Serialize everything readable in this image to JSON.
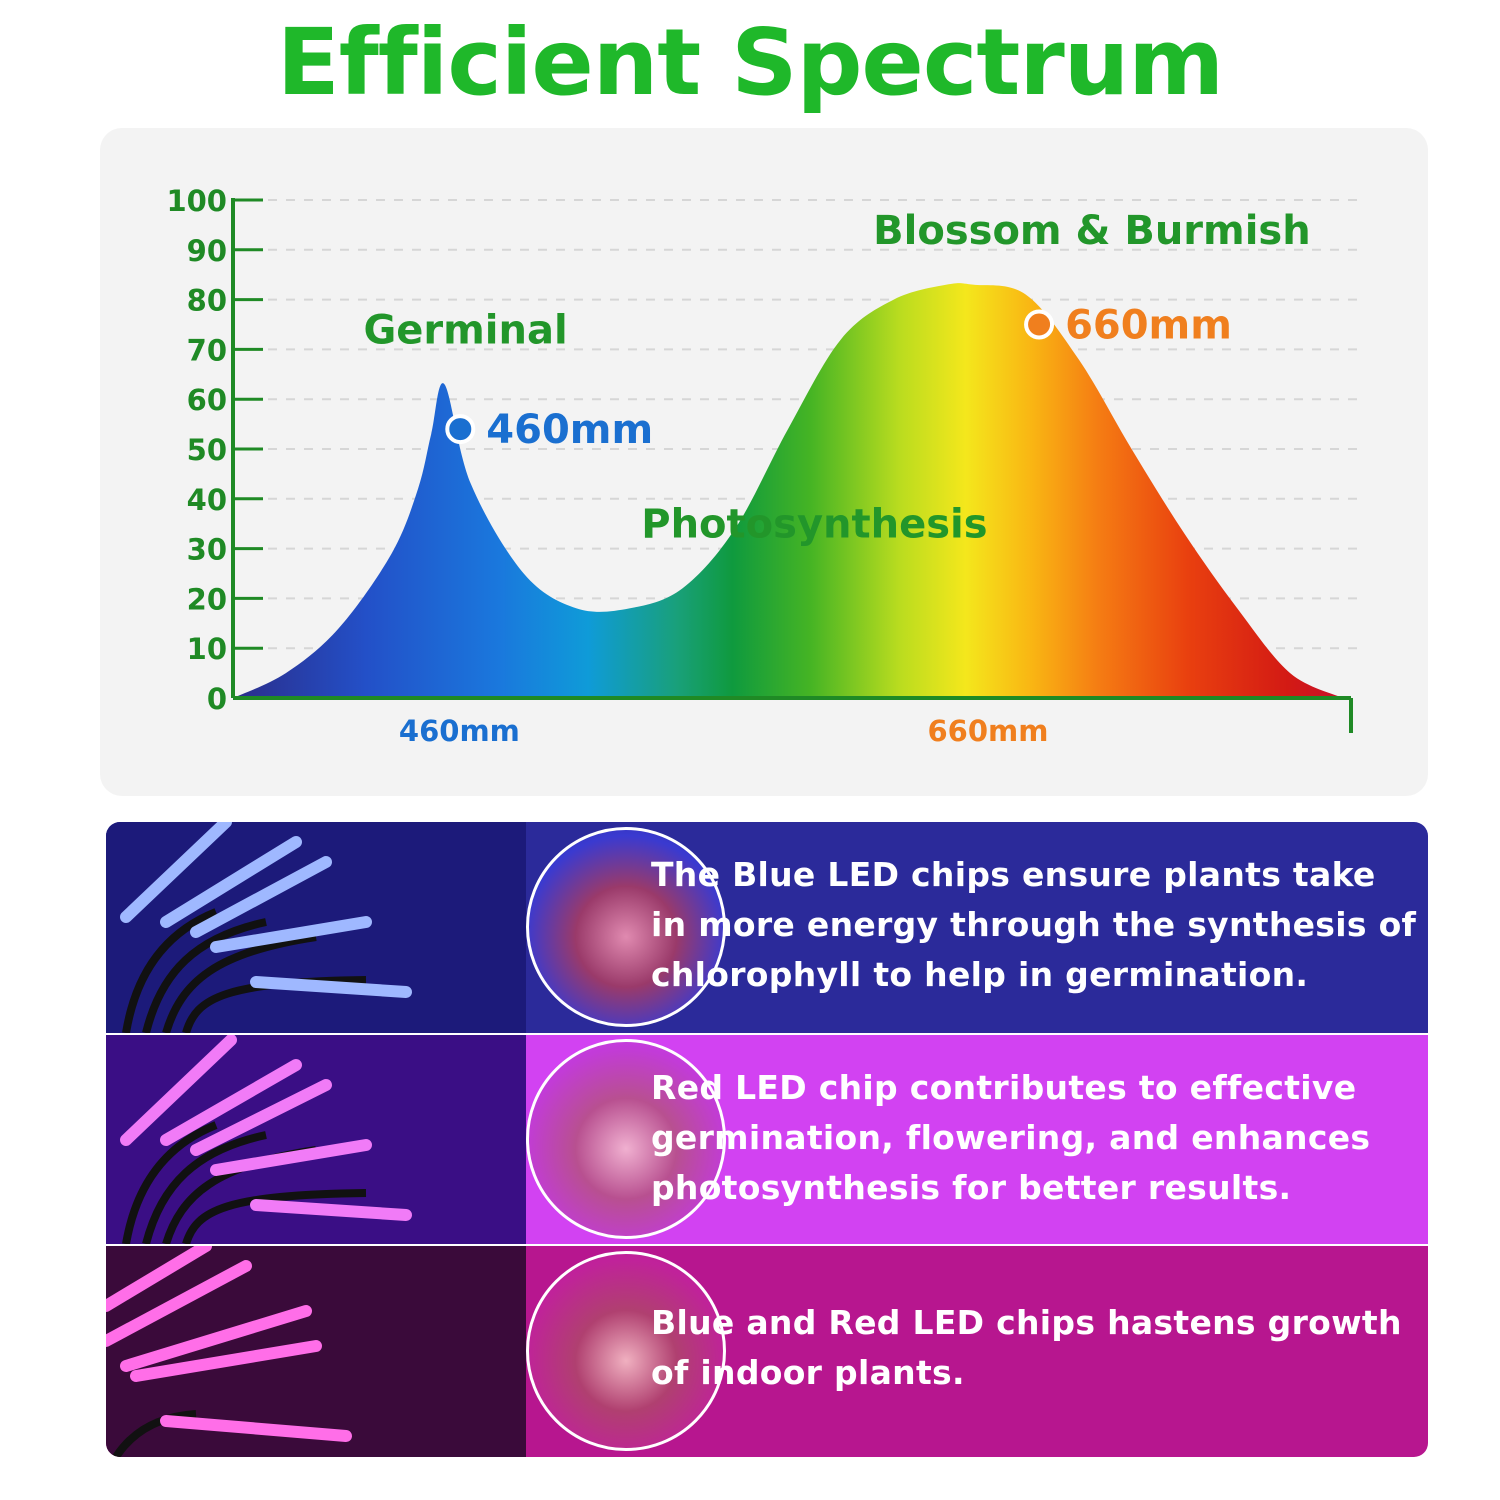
{
  "title": "Efficient Spectrum",
  "colors": {
    "title_green": "#1fb82a",
    "axis_green": "#1f8a25",
    "blue_marker": "#1a6fd0",
    "orange_marker": "#f07f1e",
    "panel_bg": "#f3f3f3"
  },
  "chart_data": {
    "type": "area",
    "title": "",
    "xlabel": "",
    "ylabel": "",
    "ylim": [
      0,
      100
    ],
    "yticks": [
      0,
      10,
      20,
      30,
      40,
      50,
      60,
      70,
      80,
      90,
      100
    ],
    "xlim": [
      380,
      800
    ],
    "grid": true,
    "x_category_labels": [
      {
        "x": 460,
        "label": "460mm",
        "color": "#1a6fd0"
      },
      {
        "x": 660,
        "label": "660mm",
        "color": "#f07f1e"
      }
    ],
    "series": [
      {
        "x": [
          380,
          400,
          420,
          440,
          450,
          455,
          460,
          470,
          490,
          510,
          530,
          550,
          570,
          590,
          610,
          630,
          650,
          660,
          680,
          700,
          720,
          740,
          760,
          780,
          800
        ],
        "y": [
          0,
          5,
          14,
          29,
          42,
          53,
          63,
          43,
          25,
          18,
          18,
          22,
          34,
          54,
          72,
          80,
          83,
          83,
          81,
          68,
          50,
          33,
          18,
          5,
          0
        ]
      }
    ],
    "region_labels": [
      {
        "text": "Germinal",
        "x": 468,
        "y": 74
      },
      {
        "text": "Photosynthesis",
        "x": 600,
        "y": 35
      },
      {
        "text": "Blossom & Burmish",
        "x": 705,
        "y": 94
      }
    ],
    "markers": [
      {
        "x": 466,
        "y": 54,
        "label": "460mm",
        "color": "#1a6fd0"
      },
      {
        "x": 685,
        "y": 75,
        "label": "660mm",
        "color": "#f07f1e"
      }
    ]
  },
  "bands": [
    {
      "icon": "blue-grow-lamp",
      "text": "The Blue LED chips ensure plants take in more energy through the synthesis of chlorophyll to help in germination."
    },
    {
      "icon": "purple-grow-lamp",
      "text": "Red LED chip contributes to effective germination, flowering, and enhances photosynthesis for better results."
    },
    {
      "icon": "pink-grow-lamp",
      "text": "Blue and Red LED chips hastens growth of indoor plants."
    }
  ]
}
